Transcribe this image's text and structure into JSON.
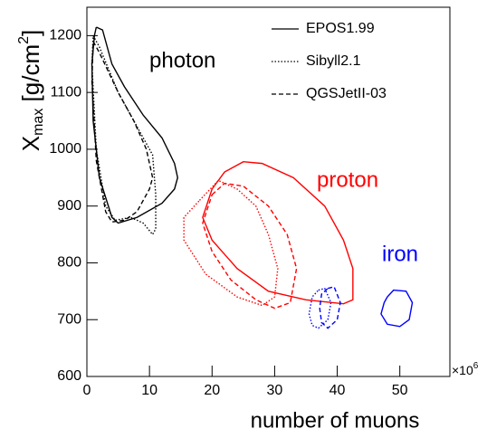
{
  "chart_data": {
    "type": "contour",
    "xlabel": "number of muons",
    "x_multiplier": {
      "base": "×10",
      "exponent": "6"
    },
    "ylabel": {
      "main": "X",
      "sub": "max",
      "unit": " [g/cm",
      "sup": "2",
      "end": "]"
    },
    "xlim": [
      0,
      58
    ],
    "xticks": [
      0,
      10,
      20,
      30,
      40,
      50
    ],
    "ylim": [
      600,
      1250
    ],
    "yticks": [
      600,
      700,
      800,
      900,
      1000,
      1100,
      1200
    ],
    "legend_position": "upper right",
    "legend": [
      {
        "name": "EPOS1.99",
        "dash": "solid"
      },
      {
        "name": "Sibyll2.1",
        "dash": "dotted"
      },
      {
        "name": "QGSJetII-03",
        "dash": "dashed"
      }
    ],
    "groups": [
      {
        "label": "photon",
        "color": "#000000",
        "contours": [
          {
            "x": [
              1.5,
              2.5,
              4,
              6,
              9,
              12,
              14,
              14.5,
              14,
              12,
              8,
              5,
              4,
              2,
              1,
              0.8,
              1.2,
              1.5
            ],
            "y": [
              1215,
              1210,
              1150,
              1110,
              1060,
              1020,
              975,
              950,
              930,
              905,
              880,
              870,
              880,
              950,
              1050,
              1150,
              1200,
              1215
            ]
          },
          {
            "x": [
              1,
              2,
              5,
              8,
              10.5,
              11,
              11,
              10.5,
              9,
              7,
              4.5,
              3,
              1.5,
              0.8,
              1
            ],
            "y": [
              1200,
              1180,
              1100,
              1040,
              990,
              920,
              860,
              850,
              870,
              880,
              875,
              900,
              1000,
              1150,
              1200
            ]
          },
          {
            "x": [
              1,
              2,
              5,
              7.5,
              9.5,
              10.5,
              10,
              8,
              6,
              4,
              3,
              1.5,
              0.8,
              1
            ],
            "y": [
              1190,
              1170,
              1100,
              1050,
              1000,
              950,
              930,
              890,
              875,
              872,
              890,
              980,
              1120,
              1190
            ]
          }
        ]
      },
      {
        "label": "proton",
        "color": "#ff0000",
        "contours": [
          {
            "x": [
              20,
              22,
              25,
              28,
              33,
              38,
              41,
              42.5,
              42.5,
              41,
              35,
              29,
              24,
              20,
              18.5,
              20
            ],
            "y": [
              930,
              960,
              978,
              975,
              950,
              900,
              840,
              790,
              735,
              728,
              735,
              750,
              790,
              840,
              880,
              930
            ]
          },
          {
            "x": [
              18,
              21,
              24,
              27,
              29,
              30.5,
              30,
              28,
              24,
              19,
              15.5,
              15.5,
              18
            ],
            "y": [
              910,
              945,
              930,
              900,
              850,
              790,
              740,
              725,
              740,
              780,
              840,
              880,
              910
            ]
          },
          {
            "x": [
              20,
              22,
              25,
              29,
              32,
              33.5,
              32.5,
              30,
              27,
              23,
              20,
              18.5,
              20
            ],
            "y": [
              920,
              940,
              935,
              900,
              850,
              790,
              730,
              720,
              735,
              770,
              820,
              870,
              920
            ]
          }
        ]
      },
      {
        "label": "iron",
        "color": "#0000ff",
        "contours": [
          {
            "x": [
              48,
              49,
              51,
              52,
              51.5,
              50,
              48,
              47,
              47.5,
              48
            ],
            "y": [
              740,
              752,
              750,
              730,
              700,
              688,
              692,
              710,
              730,
              740
            ]
          },
          {
            "x": [
              37,
              38,
              39,
              38.5,
              37,
              36,
              35.5,
              36,
              37
            ],
            "y": [
              752,
              755,
              730,
              700,
              685,
              690,
              710,
              740,
              752
            ]
          },
          {
            "x": [
              38.5,
              39.5,
              40.5,
              40,
              38.5,
              37.5,
              37.2,
              37.5,
              38.5
            ],
            "y": [
              755,
              758,
              730,
              700,
              685,
              695,
              720,
              745,
              755
            ]
          }
        ]
      }
    ]
  }
}
